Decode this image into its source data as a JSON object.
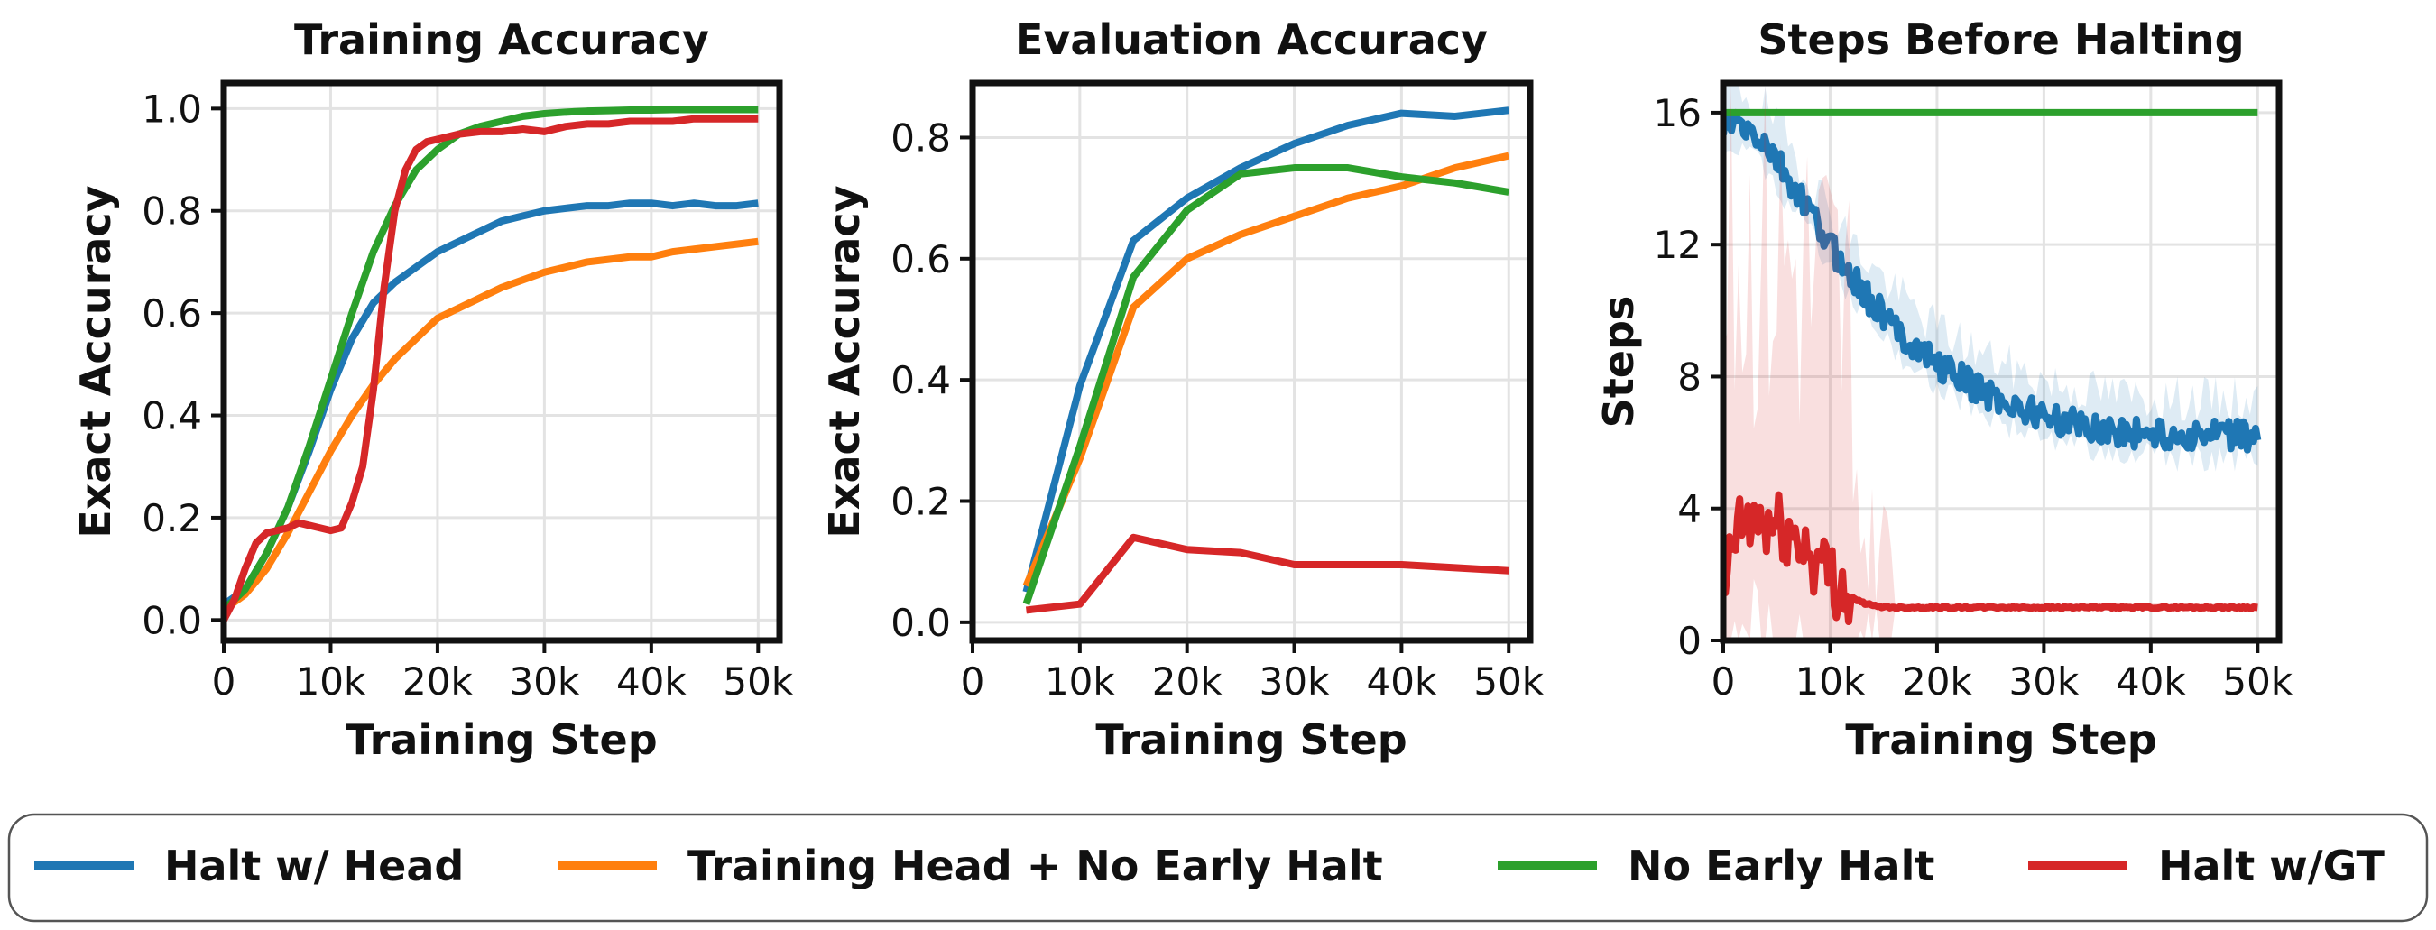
{
  "colors": {
    "halt_head": "#1f77b4",
    "train_head_no_early": "#ff7f0e",
    "no_early_halt": "#2ca02c",
    "halt_gt": "#d62728",
    "grid": "#e3e3e3",
    "axes": "#111111"
  },
  "legend": {
    "placement": "bottom",
    "items": [
      {
        "label": "Halt w/ Head",
        "color": "#1f77b4"
      },
      {
        "label": "Training Head + No Early Halt",
        "color": "#ff7f0e"
      },
      {
        "label": "No Early Halt",
        "color": "#2ca02c"
      },
      {
        "label": "Halt w/GT",
        "color": "#d62728"
      }
    ]
  },
  "chart_data": [
    {
      "type": "line",
      "title": "Training Accuracy",
      "xlabel": "Training Step",
      "ylabel": "Exact Accuracy",
      "xlim": [
        0,
        52000
      ],
      "ylim": [
        -0.04,
        1.05
      ],
      "grid": true,
      "xticks": [
        0,
        10000,
        20000,
        30000,
        40000,
        50000
      ],
      "xtick_labels": [
        "0",
        "10k",
        "20k",
        "30k",
        "40k",
        "50k"
      ],
      "yticks": [
        0.0,
        0.2,
        0.4,
        0.6,
        0.8,
        1.0
      ],
      "ytick_labels": [
        "0.0",
        "0.2",
        "0.4",
        "0.6",
        "0.8",
        "1.0"
      ],
      "series": [
        {
          "name": "Halt w/ Head",
          "color": "#1f77b4",
          "x": [
            0,
            2000,
            4000,
            6000,
            8000,
            10000,
            12000,
            14000,
            16000,
            18000,
            20000,
            22000,
            24000,
            26000,
            28000,
            30000,
            32000,
            34000,
            36000,
            38000,
            40000,
            42000,
            44000,
            46000,
            48000,
            50000
          ],
          "y": [
            0.03,
            0.06,
            0.13,
            0.22,
            0.33,
            0.45,
            0.55,
            0.62,
            0.66,
            0.69,
            0.72,
            0.74,
            0.76,
            0.78,
            0.79,
            0.8,
            0.805,
            0.81,
            0.81,
            0.815,
            0.815,
            0.81,
            0.815,
            0.81,
            0.81,
            0.815
          ]
        },
        {
          "name": "Training Head + No Early Halt",
          "color": "#ff7f0e",
          "x": [
            0,
            2000,
            4000,
            6000,
            8000,
            10000,
            12000,
            14000,
            16000,
            18000,
            20000,
            22000,
            24000,
            26000,
            28000,
            30000,
            32000,
            34000,
            36000,
            38000,
            40000,
            42000,
            44000,
            46000,
            48000,
            50000
          ],
          "y": [
            0.02,
            0.05,
            0.1,
            0.17,
            0.25,
            0.33,
            0.4,
            0.46,
            0.51,
            0.55,
            0.59,
            0.61,
            0.63,
            0.65,
            0.665,
            0.68,
            0.69,
            0.7,
            0.705,
            0.71,
            0.71,
            0.72,
            0.725,
            0.73,
            0.735,
            0.74
          ]
        },
        {
          "name": "No Early Halt",
          "color": "#2ca02c",
          "x": [
            0,
            2000,
            4000,
            6000,
            8000,
            10000,
            12000,
            14000,
            16000,
            18000,
            20000,
            22000,
            24000,
            26000,
            28000,
            30000,
            32000,
            34000,
            36000,
            38000,
            40000,
            42000,
            44000,
            46000,
            48000,
            50000
          ],
          "y": [
            0.02,
            0.06,
            0.13,
            0.22,
            0.34,
            0.47,
            0.6,
            0.72,
            0.81,
            0.88,
            0.92,
            0.95,
            0.965,
            0.975,
            0.985,
            0.99,
            0.993,
            0.995,
            0.996,
            0.997,
            0.997,
            0.998,
            0.998,
            0.998,
            0.998,
            0.998
          ]
        },
        {
          "name": "Halt w/GT",
          "color": "#d62728",
          "x": [
            0,
            1000,
            2000,
            3000,
            4000,
            5000,
            6000,
            7000,
            8000,
            9000,
            10000,
            11000,
            12000,
            13000,
            14000,
            15000,
            16000,
            17000,
            18000,
            19000,
            20000,
            22000,
            24000,
            26000,
            28000,
            30000,
            32000,
            34000,
            36000,
            38000,
            40000,
            42000,
            44000,
            46000,
            48000,
            50000
          ],
          "y": [
            0.0,
            0.04,
            0.1,
            0.15,
            0.17,
            0.175,
            0.18,
            0.19,
            0.185,
            0.18,
            0.175,
            0.18,
            0.23,
            0.3,
            0.45,
            0.65,
            0.8,
            0.88,
            0.92,
            0.935,
            0.94,
            0.95,
            0.955,
            0.955,
            0.96,
            0.955,
            0.965,
            0.97,
            0.97,
            0.975,
            0.975,
            0.975,
            0.98,
            0.98,
            0.98,
            0.98
          ]
        }
      ]
    },
    {
      "type": "line",
      "title": "Evaluation Accuracy",
      "xlabel": "Training Step",
      "ylabel": "Exact Accuracy",
      "xlim": [
        0,
        52000
      ],
      "ylim": [
        -0.03,
        0.89
      ],
      "grid": true,
      "xticks": [
        0,
        10000,
        20000,
        30000,
        40000,
        50000
      ],
      "xtick_labels": [
        "0",
        "10k",
        "20k",
        "30k",
        "40k",
        "50k"
      ],
      "yticks": [
        0.0,
        0.2,
        0.4,
        0.6,
        0.8
      ],
      "ytick_labels": [
        "0.0",
        "0.2",
        "0.4",
        "0.6",
        "0.8"
      ],
      "series": [
        {
          "name": "Halt w/ Head",
          "color": "#1f77b4",
          "x": [
            5000,
            10000,
            15000,
            20000,
            25000,
            30000,
            35000,
            40000,
            45000,
            50000
          ],
          "y": [
            0.05,
            0.39,
            0.63,
            0.7,
            0.75,
            0.79,
            0.82,
            0.84,
            0.835,
            0.845
          ]
        },
        {
          "name": "Training Head + No Early Halt",
          "color": "#ff7f0e",
          "x": [
            5000,
            10000,
            15000,
            20000,
            25000,
            30000,
            35000,
            40000,
            45000,
            50000
          ],
          "y": [
            0.06,
            0.27,
            0.52,
            0.6,
            0.64,
            0.67,
            0.7,
            0.72,
            0.75,
            0.77
          ]
        },
        {
          "name": "No Early Halt",
          "color": "#2ca02c",
          "x": [
            5000,
            10000,
            15000,
            20000,
            25000,
            30000,
            35000,
            40000,
            45000,
            50000
          ],
          "y": [
            0.03,
            0.29,
            0.57,
            0.68,
            0.74,
            0.75,
            0.75,
            0.735,
            0.725,
            0.71
          ]
        },
        {
          "name": "Halt w/GT",
          "color": "#d62728",
          "x": [
            5000,
            10000,
            15000,
            20000,
            25000,
            30000,
            35000,
            40000,
            45000,
            50000
          ],
          "y": [
            0.02,
            0.03,
            0.14,
            0.12,
            0.115,
            0.095,
            0.095,
            0.095,
            0.09,
            0.085
          ]
        }
      ]
    },
    {
      "type": "line",
      "title": "Steps Before Halting",
      "xlabel": "Training Step",
      "ylabel": "Steps",
      "xlim": [
        0,
        52000
      ],
      "ylim": [
        0,
        16.9
      ],
      "grid": true,
      "xticks": [
        0,
        10000,
        20000,
        30000,
        40000,
        50000
      ],
      "xtick_labels": [
        "0",
        "10k",
        "20k",
        "30k",
        "40k",
        "50k"
      ],
      "yticks": [
        0,
        4,
        8,
        12,
        16
      ],
      "ytick_labels": [
        "0",
        "4",
        "8",
        "12",
        "16"
      ],
      "series": [
        {
          "name": "Halt w/ Head",
          "color": "#1f77b4",
          "shaded_band": true,
          "x": [
            0,
            1000,
            2000,
            3000,
            4000,
            5000,
            6000,
            7000,
            8000,
            9000,
            10000,
            12000,
            14000,
            16000,
            18000,
            20000,
            22000,
            24000,
            26000,
            28000,
            30000,
            32000,
            34000,
            36000,
            38000,
            40000,
            42000,
            44000,
            46000,
            48000,
            50000
          ],
          "y": [
            15.5,
            15.7,
            15.5,
            15.3,
            15.0,
            14.5,
            14.0,
            13.5,
            13.0,
            12.5,
            12.0,
            11.0,
            10.2,
            9.5,
            8.9,
            8.4,
            8.0,
            7.6,
            7.3,
            7.0,
            6.8,
            6.6,
            6.5,
            6.4,
            6.3,
            6.3,
            6.2,
            6.2,
            6.2,
            6.2,
            6.2
          ]
        },
        {
          "name": "No Early Halt",
          "color": "#2ca02c",
          "x": [
            0,
            50000
          ],
          "y": [
            16,
            16
          ]
        },
        {
          "name": "Halt w/GT",
          "color": "#d62728",
          "shaded_band": true,
          "x": [
            0,
            1000,
            2000,
            3000,
            4000,
            5000,
            6000,
            7000,
            8000,
            9000,
            10000,
            11000,
            12000,
            13000,
            14000,
            15000,
            16000,
            20000,
            25000,
            30000,
            35000,
            40000,
            45000,
            50000
          ],
          "y": [
            1.0,
            3.2,
            3.4,
            3.6,
            3.5,
            3.4,
            3.2,
            3.0,
            2.7,
            2.3,
            2.0,
            1.6,
            1.3,
            1.15,
            1.05,
            1.02,
            1.0,
            1.0,
            1.0,
            1.0,
            1.0,
            1.0,
            1.0,
            1.0
          ]
        }
      ]
    }
  ]
}
